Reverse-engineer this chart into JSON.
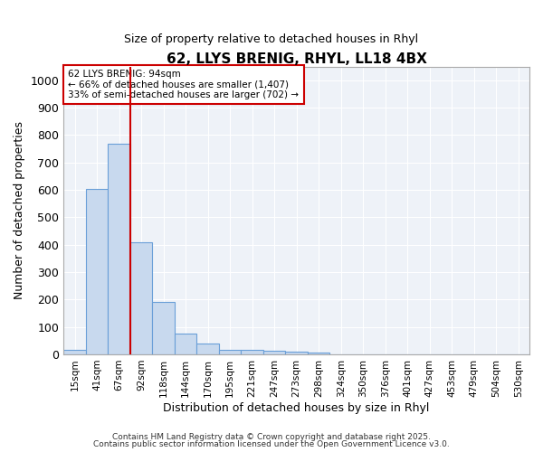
{
  "title": "62, LLYS BRENIG, RHYL, LL18 4BX",
  "subtitle": "Size of property relative to detached houses in Rhyl",
  "xlabel": "Distribution of detached houses by size in Rhyl",
  "ylabel": "Number of detached properties",
  "bar_color": "#c8d9ee",
  "bar_edge_color": "#6a9fd8",
  "categories": [
    "15sqm",
    "41sqm",
    "67sqm",
    "92sqm",
    "118sqm",
    "144sqm",
    "170sqm",
    "195sqm",
    "221sqm",
    "247sqm",
    "273sqm",
    "298sqm",
    "324sqm",
    "350sqm",
    "376sqm",
    "401sqm",
    "427sqm",
    "453sqm",
    "479sqm",
    "504sqm",
    "530sqm"
  ],
  "bar_values": [
    15,
    605,
    770,
    410,
    190,
    77,
    38,
    18,
    15,
    12,
    10,
    5,
    0,
    0,
    0,
    0,
    0,
    0,
    0,
    0,
    0
  ],
  "red_line_x": 2.5,
  "annotation_text": "62 LLYS BRENIG: 94sqm\n← 66% of detached houses are smaller (1,407)\n33% of semi-detached houses are larger (702) →",
  "annotation_box_color": "#ffffff",
  "annotation_box_edge_color": "#cc0000",
  "ylim": [
    0,
    1050
  ],
  "yticks": [
    0,
    100,
    200,
    300,
    400,
    500,
    600,
    700,
    800,
    900,
    1000
  ],
  "footer_line1": "Contains HM Land Registry data © Crown copyright and database right 2025.",
  "footer_line2": "Contains public sector information licensed under the Open Government Licence v3.0.",
  "background_color": "#ffffff",
  "plot_bg_color": "#eef2f8",
  "grid_color": "#ffffff"
}
